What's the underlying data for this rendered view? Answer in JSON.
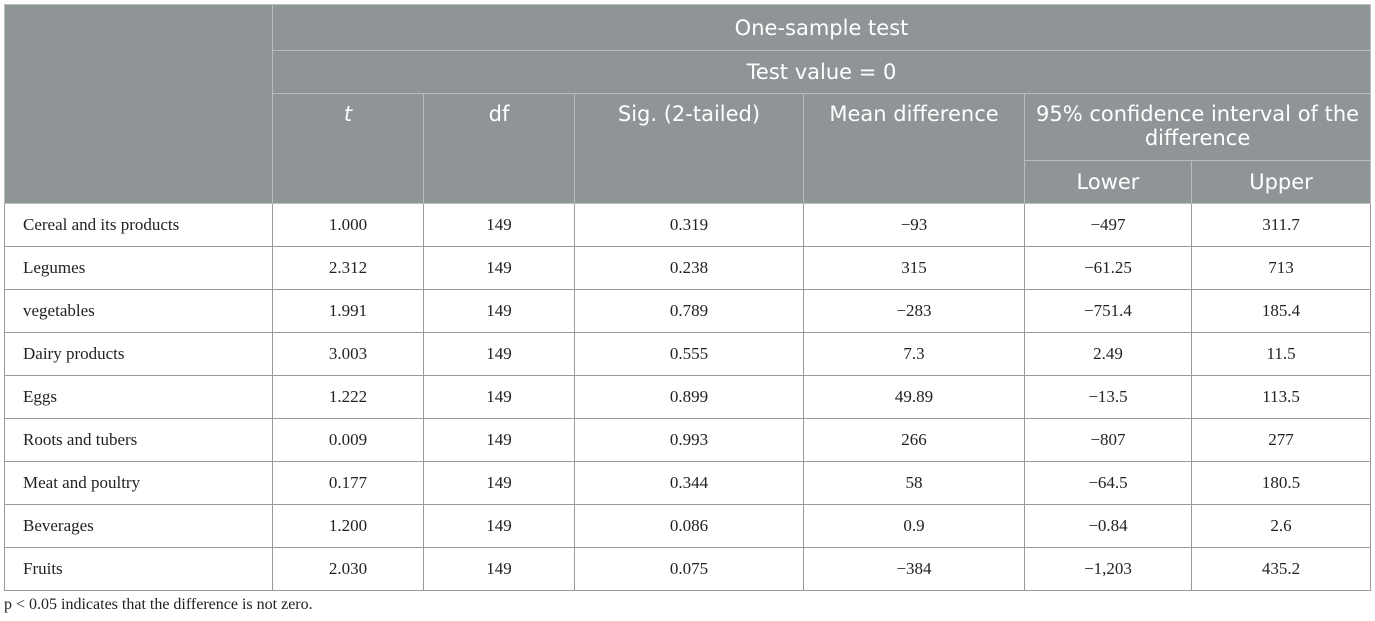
{
  "table": {
    "title": "One-sample test",
    "test_value": "Test value = 0",
    "columns": {
      "t": "t",
      "df": "df",
      "sig": "Sig. (2-tailed)",
      "mean_diff": "Mean difference",
      "ci": "95% confidence interval of the difference",
      "lower": "Lower",
      "upper": "Upper"
    },
    "rows": [
      {
        "label": "Cereal and its products",
        "t": "1.000",
        "df": "149",
        "sig": "0.319",
        "mean_diff": "−93",
        "lower": "−497",
        "upper": "311.7"
      },
      {
        "label": "Legumes",
        "t": "2.312",
        "df": "149",
        "sig": "0.238",
        "mean_diff": "315",
        "lower": "−61.25",
        "upper": "713"
      },
      {
        "label": "vegetables",
        "t": "1.991",
        "df": "149",
        "sig": "0.789",
        "mean_diff": "−283",
        "lower": "−751.4",
        "upper": "185.4"
      },
      {
        "label": "Dairy products",
        "t": "3.003",
        "df": "149",
        "sig": "0.555",
        "mean_diff": "7.3",
        "lower": "2.49",
        "upper": "11.5"
      },
      {
        "label": "Eggs",
        "t": "1.222",
        "df": "149",
        "sig": "0.899",
        "mean_diff": "49.89",
        "lower": "−13.5",
        "upper": "113.5"
      },
      {
        "label": "Roots and tubers",
        "t": "0.009",
        "df": "149",
        "sig": "0.993",
        "mean_diff": "266",
        "lower": "−807",
        "upper": "277"
      },
      {
        "label": "Meat and poultry",
        "t": "0.177",
        "df": "149",
        "sig": "0.344",
        "mean_diff": "58",
        "lower": "−64.5",
        "upper": "180.5"
      },
      {
        "label": "Beverages",
        "t": "1.200",
        "df": "149",
        "sig": "0.086",
        "mean_diff": "0.9",
        "lower": "−0.84",
        "upper": "2.6"
      },
      {
        "label": "Fruits",
        "t": "2.030",
        "df": "149",
        "sig": "0.075",
        "mean_diff": "−384",
        "lower": "−1,203",
        "upper": "435.2"
      }
    ],
    "footnote": "p < 0.05 indicates that the difference is not zero."
  },
  "colors": {
    "header_bg": "#8f9597",
    "header_text": "#ffffff"
  }
}
